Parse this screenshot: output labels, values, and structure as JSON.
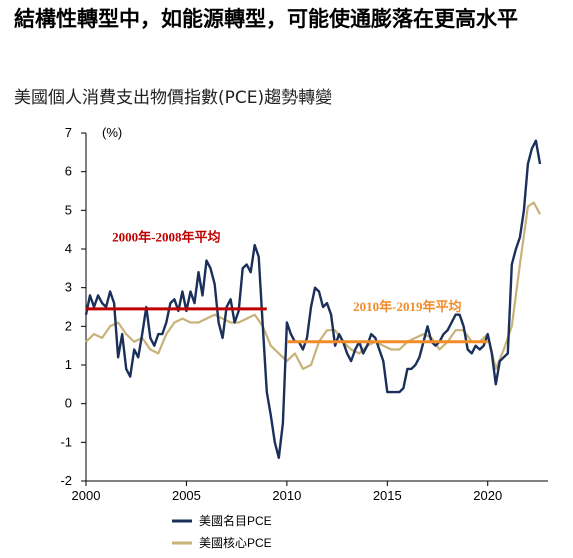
{
  "header": {
    "title": "結構性轉型中，如能源轉型，可能使通膨落在更高水平",
    "subtitle": "美國個人消費支出物價指數(PCE)趨勢轉變"
  },
  "chart_data": {
    "type": "line",
    "ylabel": "(%)",
    "xlim": [
      2000,
      2023
    ],
    "ylim": [
      -2,
      7
    ],
    "xticks": [
      2000,
      2005,
      2010,
      2015,
      2020
    ],
    "yticks": [
      -2,
      -1,
      0,
      1,
      2,
      3,
      4,
      5,
      6,
      7
    ],
    "grid": false,
    "legend_position": "bottom-left",
    "series": [
      {
        "name": "美國名目PCE",
        "color": "#1a2f5a",
        "x": [
          2000.0,
          2000.2,
          2000.4,
          2000.6,
          2000.8,
          2001.0,
          2001.2,
          2001.4,
          2001.6,
          2001.8,
          2002.0,
          2002.2,
          2002.4,
          2002.6,
          2002.8,
          2003.0,
          2003.2,
          2003.4,
          2003.6,
          2003.8,
          2004.0,
          2004.2,
          2004.4,
          2004.6,
          2004.8,
          2005.0,
          2005.2,
          2005.4,
          2005.6,
          2005.8,
          2006.0,
          2006.2,
          2006.4,
          2006.6,
          2006.8,
          2007.0,
          2007.2,
          2007.4,
          2007.6,
          2007.8,
          2008.0,
          2008.2,
          2008.4,
          2008.6,
          2008.8,
          2009.0,
          2009.2,
          2009.4,
          2009.6,
          2009.8,
          2010.0,
          2010.2,
          2010.4,
          2010.6,
          2010.8,
          2011.0,
          2011.2,
          2011.4,
          2011.6,
          2011.8,
          2012.0,
          2012.2,
          2012.4,
          2012.6,
          2012.8,
          2013.0,
          2013.2,
          2013.4,
          2013.6,
          2013.8,
          2014.0,
          2014.2,
          2014.4,
          2014.6,
          2014.8,
          2015.0,
          2015.2,
          2015.4,
          2015.6,
          2015.8,
          2016.0,
          2016.2,
          2016.4,
          2016.6,
          2016.8,
          2017.0,
          2017.2,
          2017.4,
          2017.6,
          2017.8,
          2018.0,
          2018.2,
          2018.4,
          2018.6,
          2018.8,
          2019.0,
          2019.2,
          2019.4,
          2019.6,
          2019.8,
          2020.0,
          2020.2,
          2020.4,
          2020.6,
          2020.8,
          2021.0,
          2021.2,
          2021.4,
          2021.6,
          2021.8,
          2022.0,
          2022.2,
          2022.4,
          2022.6
        ],
        "values": [
          2.3,
          2.8,
          2.5,
          2.8,
          2.6,
          2.5,
          2.9,
          2.6,
          1.2,
          1.8,
          0.9,
          0.7,
          1.4,
          1.2,
          1.8,
          2.5,
          1.7,
          1.5,
          1.8,
          1.8,
          2.1,
          2.6,
          2.7,
          2.4,
          2.9,
          2.4,
          2.9,
          2.6,
          3.4,
          2.8,
          3.7,
          3.5,
          3.1,
          2.1,
          1.7,
          2.5,
          2.7,
          2.1,
          2.4,
          3.5,
          3.6,
          3.4,
          4.1,
          3.8,
          2.0,
          0.3,
          -0.3,
          -1.0,
          -1.4,
          -0.5,
          2.1,
          1.8,
          1.6,
          1.6,
          1.4,
          1.7,
          2.5,
          3.0,
          2.9,
          2.5,
          2.6,
          2.3,
          1.5,
          1.8,
          1.6,
          1.3,
          1.1,
          1.4,
          1.6,
          1.3,
          1.5,
          1.8,
          1.7,
          1.4,
          1.1,
          0.3,
          0.3,
          0.3,
          0.3,
          0.4,
          0.9,
          0.9,
          1.0,
          1.2,
          1.6,
          2.0,
          1.6,
          1.5,
          1.6,
          1.8,
          1.9,
          2.1,
          2.3,
          2.3,
          2.0,
          1.4,
          1.3,
          1.5,
          1.4,
          1.5,
          1.8,
          1.3,
          0.5,
          1.1,
          1.2,
          1.3,
          3.6,
          4.0,
          4.3,
          5.0,
          6.2,
          6.6,
          6.8,
          6.2
        ]
      },
      {
        "name": "美國核心PCE",
        "color": "#c8b27a",
        "x": [
          2000.0,
          2000.4,
          2000.8,
          2001.2,
          2001.6,
          2002.0,
          2002.4,
          2002.8,
          2003.2,
          2003.6,
          2004.0,
          2004.4,
          2004.8,
          2005.2,
          2005.6,
          2006.0,
          2006.4,
          2006.8,
          2007.2,
          2007.6,
          2008.0,
          2008.4,
          2008.8,
          2009.2,
          2009.6,
          2010.0,
          2010.4,
          2010.8,
          2011.2,
          2011.6,
          2012.0,
          2012.4,
          2012.8,
          2013.2,
          2013.6,
          2014.0,
          2014.4,
          2014.8,
          2015.2,
          2015.6,
          2016.0,
          2016.4,
          2016.8,
          2017.2,
          2017.6,
          2018.0,
          2018.4,
          2018.8,
          2019.2,
          2019.6,
          2020.0,
          2020.4,
          2020.8,
          2021.2,
          2021.6,
          2022.0,
          2022.3,
          2022.6
        ],
        "values": [
          1.6,
          1.8,
          1.7,
          2.0,
          2.1,
          1.8,
          1.6,
          1.7,
          1.4,
          1.3,
          1.8,
          2.1,
          2.2,
          2.1,
          2.1,
          2.2,
          2.3,
          2.2,
          2.1,
          2.1,
          2.2,
          2.3,
          2.0,
          1.5,
          1.3,
          1.1,
          1.3,
          0.9,
          1.0,
          1.6,
          1.9,
          1.9,
          1.6,
          1.4,
          1.3,
          1.5,
          1.6,
          1.5,
          1.4,
          1.4,
          1.6,
          1.7,
          1.8,
          1.7,
          1.4,
          1.6,
          1.9,
          1.9,
          1.6,
          1.6,
          1.8,
          0.9,
          1.4,
          2.0,
          3.6,
          5.1,
          5.2,
          4.9
        ]
      }
    ],
    "annotations": [
      {
        "label": "2000年-2008年平均",
        "color": "#c00000",
        "x_start": 2000,
        "x_end": 2009,
        "y": 2.45,
        "label_x": 2001.3,
        "label_y": 4.2
      },
      {
        "label": "2010年-2019年平均",
        "color": "#f28c28",
        "x_start": 2010,
        "x_end": 2020,
        "y": 1.6,
        "label_x": 2013.3,
        "label_y": 2.4
      }
    ]
  }
}
